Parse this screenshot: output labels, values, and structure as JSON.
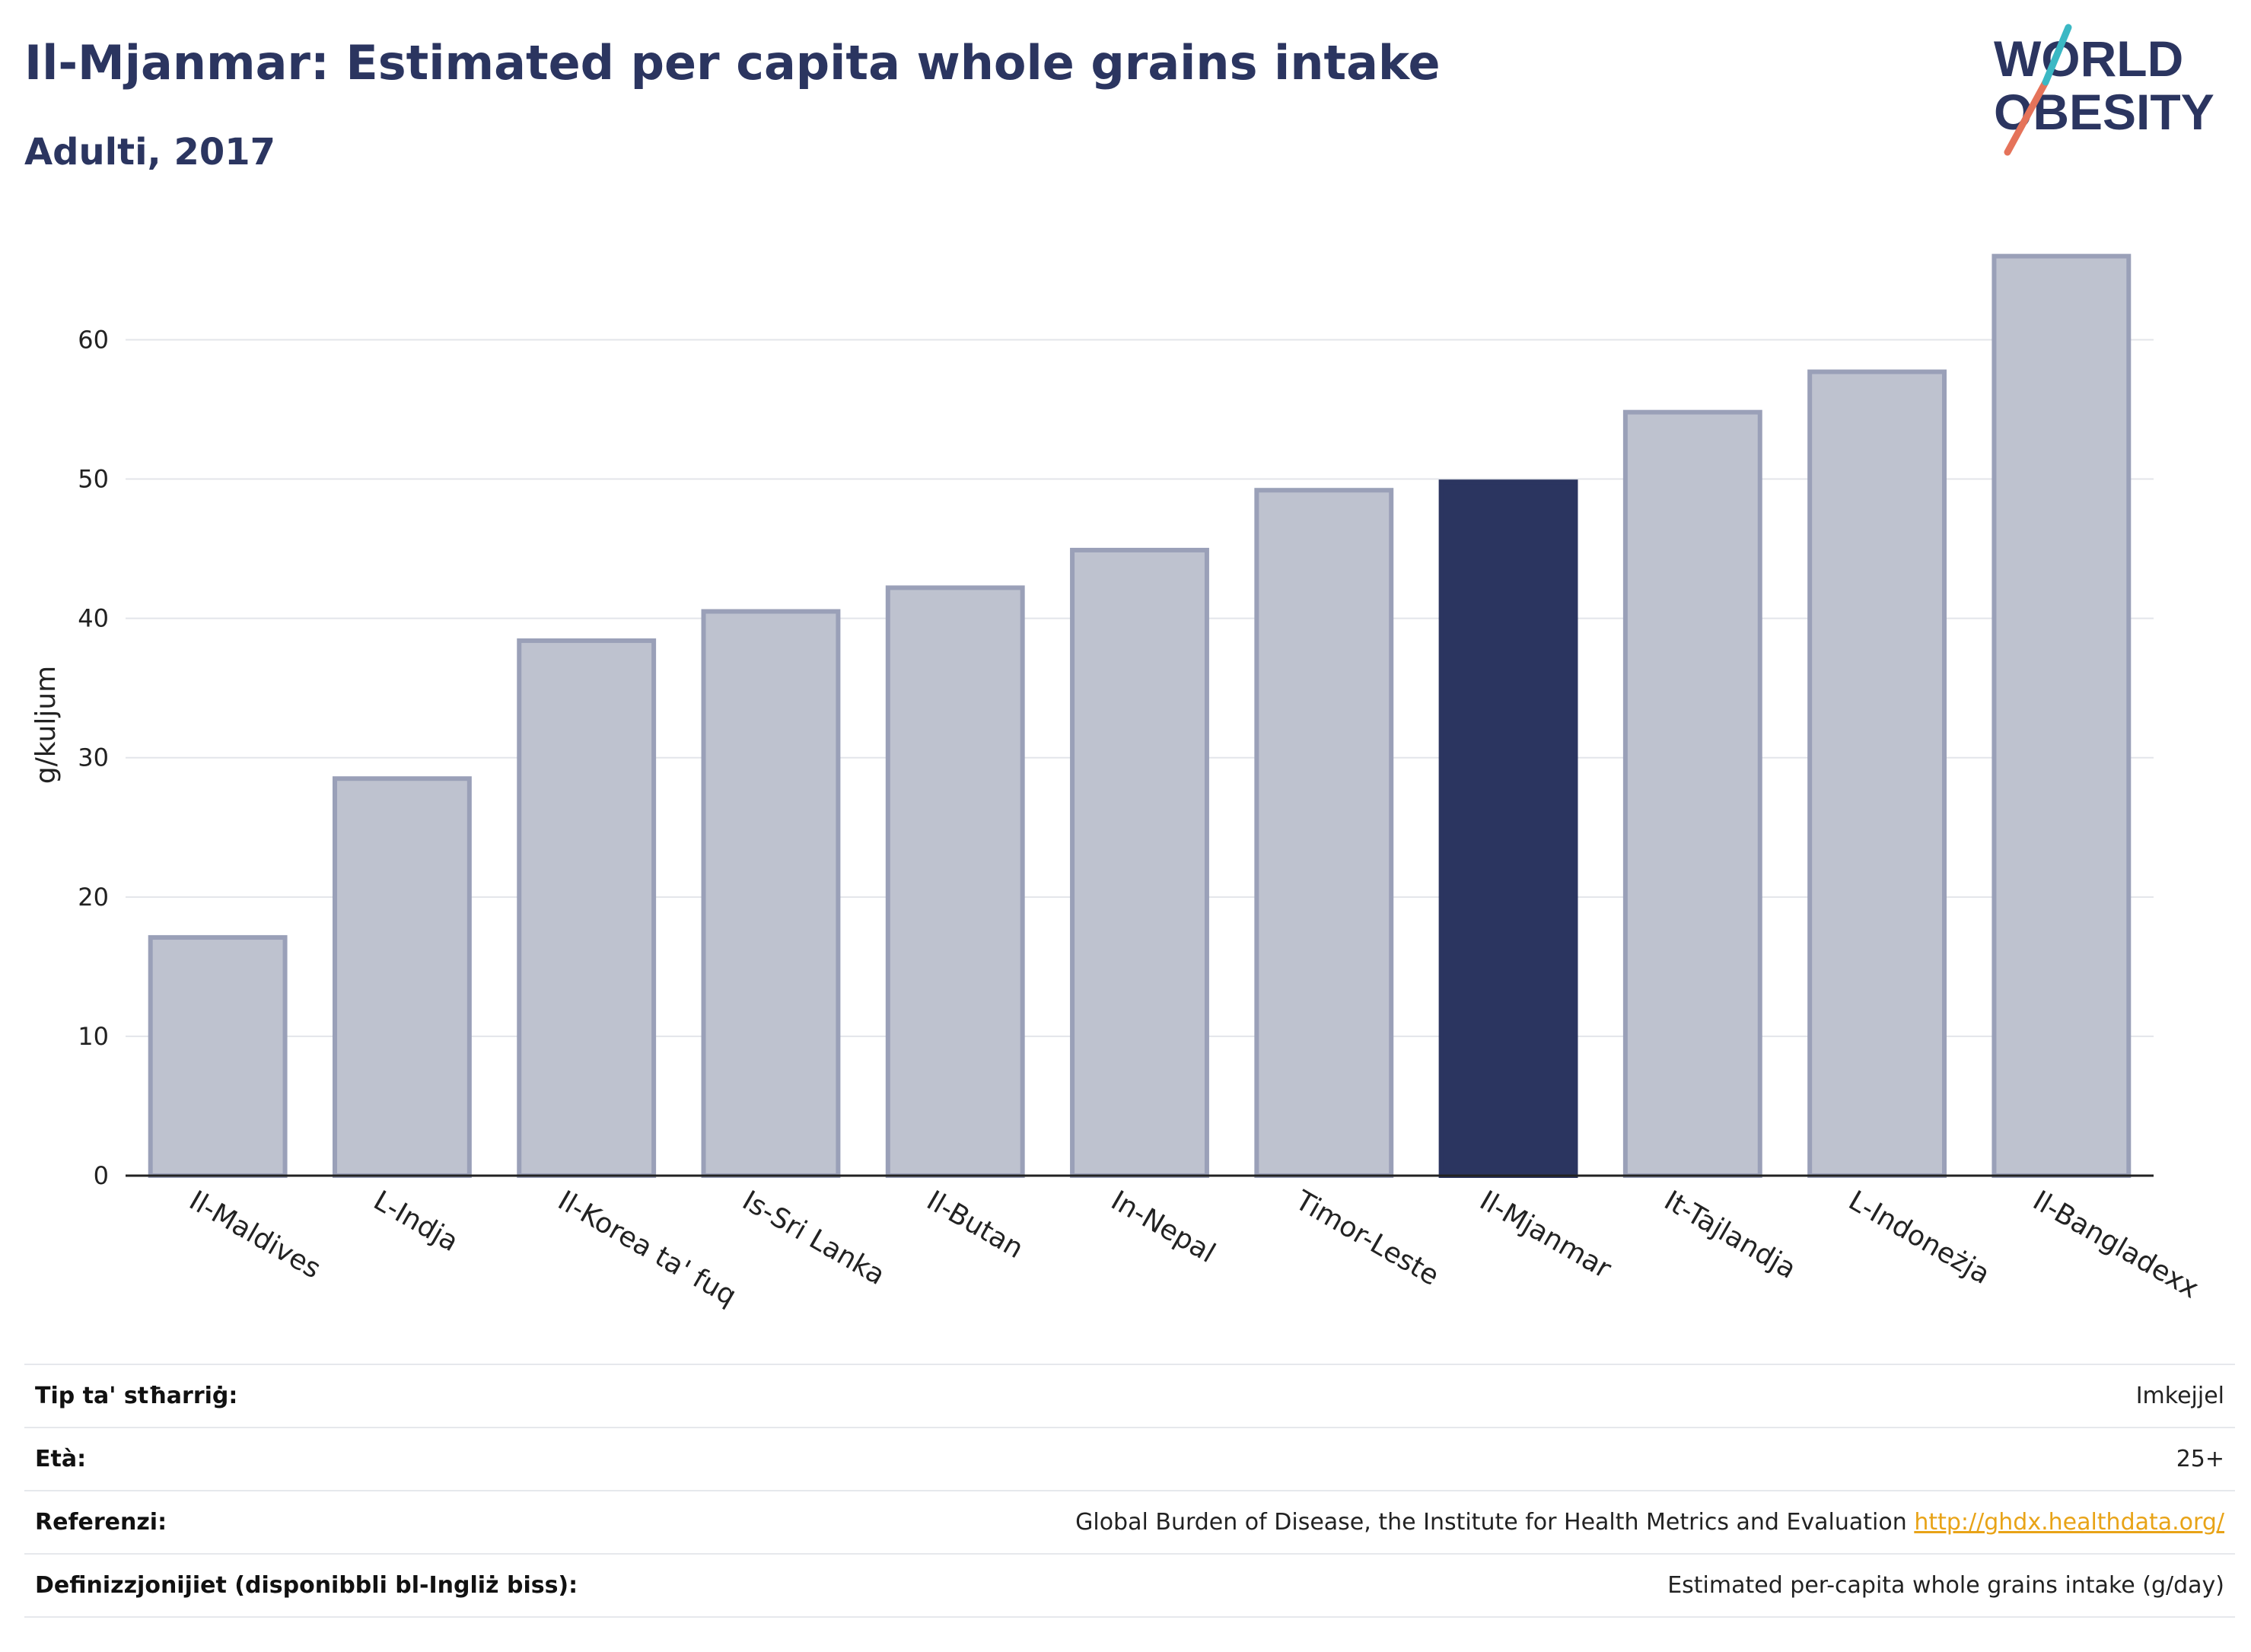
{
  "header": {
    "title": "Il-Mjanmar: Estimated per capita whole grains intake",
    "subtitle": "Adulti, 2017"
  },
  "logo": {
    "line1": "WORLD",
    "line2": "OBESITY"
  },
  "colors": {
    "highlight": "#2b3560",
    "bar": "#bec2cf",
    "bar_edge": "#9aa0b8",
    "title": "#2b3560",
    "link": "#e8a317"
  },
  "chart_data": {
    "type": "bar",
    "title": "Il-Mjanmar: Estimated per capita whole grains intake",
    "subtitle": "Adulti, 2017",
    "xlabel": "",
    "ylabel": "g/kuljum",
    "ylim": [
      0,
      68
    ],
    "yticks": [
      0,
      10,
      20,
      30,
      40,
      50,
      60
    ],
    "grid": true,
    "highlight": "Il-Mjanmar",
    "categories": [
      "Il-Maldives",
      "L-Indja",
      "Il-Korea ta' fuq",
      "Is-Sri Lanka",
      "Il-Butan",
      "In-Nepal",
      "Timor-Leste",
      "Il-Mjanmar",
      "It-Tajlandja",
      "L-Indoneżja",
      "Il-Bangladexx"
    ],
    "values": [
      17.1,
      28.5,
      38.4,
      40.5,
      42.2,
      44.9,
      49.2,
      49.8,
      54.8,
      57.7,
      66.0
    ]
  },
  "info": {
    "rows": [
      {
        "label": "Tip ta' stħarriġ:",
        "value": "Imkejjel"
      },
      {
        "label": "Età:",
        "value": "25+"
      },
      {
        "label": "Referenzi:",
        "value": "Global Burden of Disease, the Institute for Health Metrics and Evaluation",
        "link": "http://ghdx.healthdata.org/"
      },
      {
        "label": "Definizzjonijiet (disponibbli bl-Ingliż biss):",
        "value": "Estimated per-capita whole grains intake (g/day)"
      }
    ]
  }
}
